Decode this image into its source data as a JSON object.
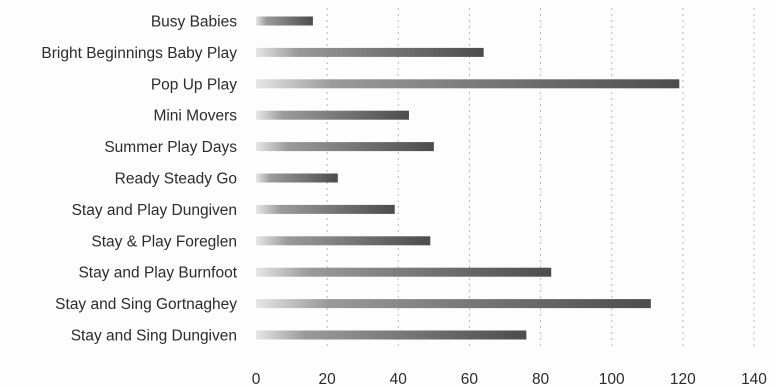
{
  "chart_data": {
    "type": "bar",
    "orientation": "horizontal",
    "title": "",
    "xlabel": "",
    "ylabel": "",
    "categories": [
      "Busy Babies",
      "Bright Beginnings Baby Play",
      "Pop Up Play",
      "Mini Movers",
      "Summer Play Days",
      "Ready Steady Go",
      "Stay and Play Dungiven",
      "Stay & Play Foreglen",
      "Stay and Play Burnfoot",
      "Stay and Sing Gortnaghey",
      "Stay and Sing Dungiven"
    ],
    "values": [
      16,
      64,
      119,
      43,
      50,
      23,
      39,
      49,
      83,
      111,
      76
    ],
    "xlim": [
      0,
      140
    ],
    "x_ticks": [
      "0",
      "20",
      "40",
      "60",
      "80",
      "100",
      "120",
      "140"
    ],
    "grid": "vertical",
    "legend": "none",
    "bar_color": "#5f5f5f"
  }
}
